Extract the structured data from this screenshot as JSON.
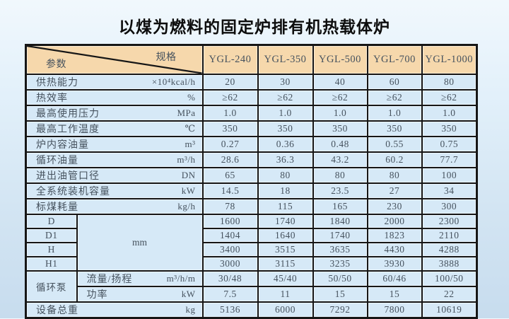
{
  "title": "以煤为燃料的固定炉排有机热载体炉",
  "table": {
    "corner": {
      "spec": "规格",
      "param": "参数"
    },
    "columns": [
      "YGL-240",
      "YGL-350",
      "YGL-500",
      "YGL-700",
      "YGL-1000"
    ],
    "merged": {
      "dim_unit": "mm",
      "pump_label": "循环泵"
    },
    "rows": [
      {
        "type": "plain",
        "label": "供热能力",
        "unit": "×10⁴kcal/h",
        "values": [
          "20",
          "30",
          "40",
          "60",
          "80"
        ]
      },
      {
        "type": "plain",
        "label": "热效率",
        "unit": "%",
        "values": [
          "≥62",
          "≥62",
          "≥62",
          "≥62",
          "≥62"
        ]
      },
      {
        "type": "plain",
        "label": "最高使用压力",
        "unit": "MPa",
        "values": [
          "1.0",
          "1.0",
          "1.0",
          "1.0",
          "1.0"
        ]
      },
      {
        "type": "plain",
        "label": "最高工作温度",
        "unit": "℃",
        "values": [
          "350",
          "350",
          "350",
          "350",
          "350"
        ]
      },
      {
        "type": "plain",
        "label": "炉内容油量",
        "unit": "m³",
        "values": [
          "0.27",
          "0.36",
          "0.48",
          "0.55",
          "0.75"
        ]
      },
      {
        "type": "plain",
        "label": "循环油量",
        "unit": "m³/h",
        "values": [
          "28.6",
          "36.3",
          "43.2",
          "60.2",
          "77.7"
        ]
      },
      {
        "type": "plain",
        "label": "进出油管口径",
        "unit": "DN",
        "values": [
          "65",
          "80",
          "80",
          "80",
          "100"
        ]
      },
      {
        "type": "plain",
        "label": "全系统装机容量",
        "unit": "kW",
        "values": [
          "14.5",
          "18",
          "23.5",
          "27",
          "34"
        ]
      },
      {
        "type": "plain",
        "label": "标煤耗量",
        "unit": "kg/h",
        "values": [
          "78",
          "115",
          "165",
          "230",
          "300"
        ]
      },
      {
        "type": "dim",
        "label": "D",
        "values": [
          "1600",
          "1740",
          "1840",
          "2000",
          "2300"
        ]
      },
      {
        "type": "dim",
        "label": "D1",
        "values": [
          "1404",
          "1640",
          "1740",
          "1823",
          "2110"
        ]
      },
      {
        "type": "dim",
        "label": "H",
        "values": [
          "3400",
          "3515",
          "3635",
          "4430",
          "4288"
        ]
      },
      {
        "type": "dim",
        "label": "H1",
        "values": [
          "3000",
          "3115",
          "3235",
          "3930",
          "3888"
        ]
      },
      {
        "type": "pump",
        "label": "流量/扬程",
        "unit": "m³/h/m",
        "values": [
          "30/48",
          "45/40",
          "50/50",
          "60/46",
          "100/50"
        ]
      },
      {
        "type": "pump",
        "label": "功率",
        "unit": "kW",
        "values": [
          "7.5",
          "11",
          "15",
          "15",
          "22"
        ]
      },
      {
        "type": "plain",
        "label": "设备总重",
        "unit": "kg",
        "values": [
          "5136",
          "6000",
          "7292",
          "7800",
          "10619"
        ]
      }
    ]
  },
  "colors": {
    "header_bg": "#f6d8ac",
    "cell_bg": "#d6e9f7",
    "border": "#161616",
    "table_text": "#46525e",
    "title_text": "#0d0d0d",
    "page_bg_top": "#f1f8fd",
    "page_bg_bottom": "#c7dcee"
  }
}
